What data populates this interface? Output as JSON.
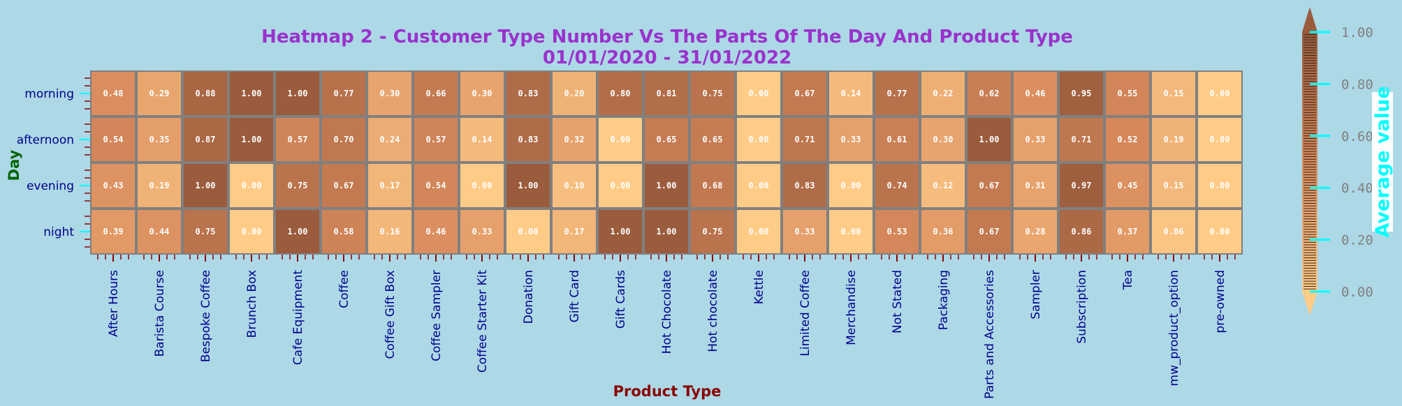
{
  "chart_data": {
    "type": "heatmap",
    "title": "Heatmap 2 - Customer Type Number Vs The Parts Of The Day And Product Type",
    "subtitle": "01/01/2020 - 31/01/2022",
    "xlabel": "Product Type",
    "ylabel": "Day",
    "colorbar_label": "Average value",
    "colorbar_ticks": [
      "0.00",
      "0.20",
      "0.40",
      "0.60",
      "0.80",
      "1.00"
    ],
    "vmin": 0,
    "vmax": 1,
    "colormap": {
      "low": "#ffcc88",
      "mid": "#d88a5c",
      "high": "#9a5c3d"
    },
    "rows": [
      "morning",
      "afternoon",
      "evening",
      "night"
    ],
    "columns": [
      "After Hours",
      "Barista Course",
      "Bespoke Coffee",
      "Brunch Box",
      "Cafe Equipment",
      "Coffee",
      "Coffee Gift Box",
      "Coffee Sampler",
      "Coffee Starter Kit",
      "Donation",
      "Gift Card",
      "Gift Cards",
      "Hot Chocolate",
      "Hot chocolate",
      "Kettle",
      "Limited Coffee",
      "Merchandise",
      "Not Stated",
      "Packaging",
      "Parts and Accessories",
      "Sampler",
      "Subscription",
      "Tea",
      "mw_product_option",
      "pre-owned"
    ],
    "values": [
      [
        "0.48",
        "0.29",
        "0.88",
        "1.00",
        "1.00",
        "0.77",
        "0.30",
        "0.66",
        "0.30",
        "0.83",
        "0.20",
        "0.80",
        "0.81",
        "0.75",
        "0.00",
        "0.67",
        "0.14",
        "0.77",
        "0.22",
        "0.62",
        "0.46",
        "0.95",
        "0.55",
        "0.15",
        "0.00"
      ],
      [
        "0.54",
        "0.35",
        "0.87",
        "1.00",
        "0.57",
        "0.70",
        "0.24",
        "0.57",
        "0.14",
        "0.83",
        "0.32",
        "0.00",
        "0.65",
        "0.65",
        "0.00",
        "0.71",
        "0.33",
        "0.61",
        "0.30",
        "1.00",
        "0.33",
        "0.71",
        "0.52",
        "0.19",
        "0.00"
      ],
      [
        "0.43",
        "0.19",
        "1.00",
        "0.00",
        "0.75",
        "0.67",
        "0.17",
        "0.54",
        "0.00",
        "1.00",
        "0.10",
        "0.00",
        "1.00",
        "0.68",
        "0.00",
        "0.83",
        "0.00",
        "0.74",
        "0.12",
        "0.67",
        "0.31",
        "0.97",
        "0.45",
        "0.15",
        "0.00"
      ],
      [
        "0.39",
        "0.44",
        "0.75",
        "0.00",
        "1.00",
        "0.58",
        "0.16",
        "0.46",
        "0.33",
        "0.00",
        "0.17",
        "1.00",
        "1.00",
        "0.75",
        "0.00",
        "0.33",
        "0.00",
        "0.53",
        "0.36",
        "0.67",
        "0.28",
        "0.86",
        "0.37",
        "0.06",
        "0.00"
      ]
    ]
  }
}
